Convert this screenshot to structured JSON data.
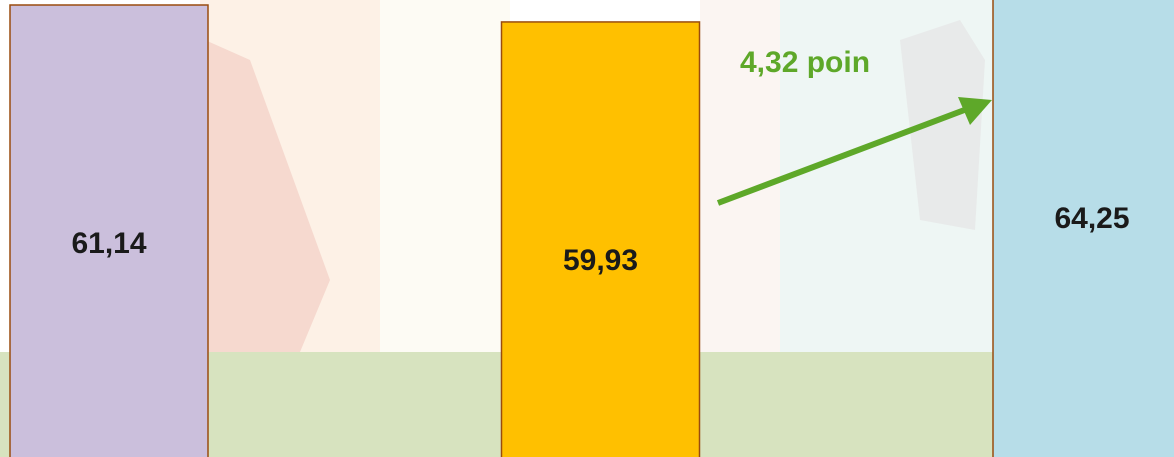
{
  "chart_data": {
    "type": "bar",
    "categories": [
      null,
      null,
      null
    ],
    "values": [
      61.14,
      59.93,
      64.25
    ],
    "value_labels": [
      "61,14",
      "59,93",
      "64,25"
    ],
    "colors": [
      "#cbbfdc",
      "#ffc000",
      "#b7dde8"
    ],
    "annotation": {
      "text": "4,32 poin",
      "color": "#5ea829"
    }
  }
}
